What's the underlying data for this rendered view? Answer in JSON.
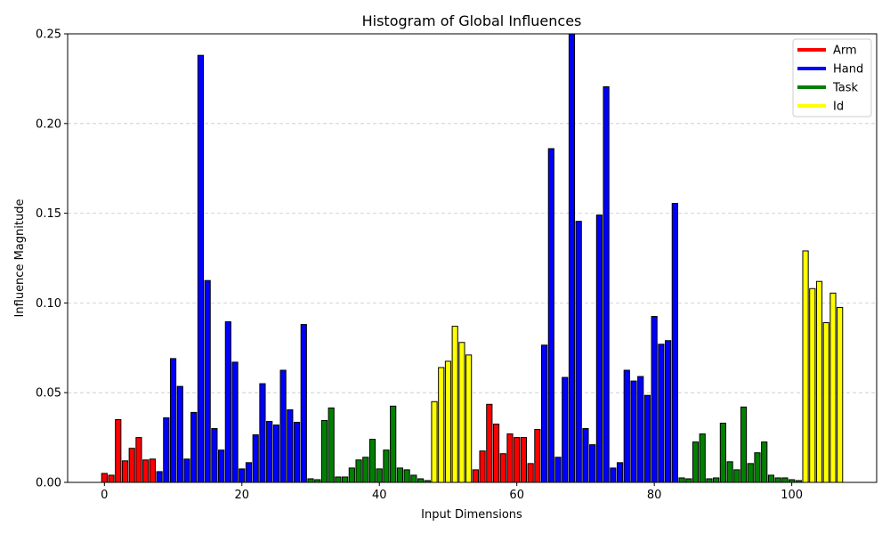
{
  "chart_data": {
    "type": "bar",
    "title": "Histogram of Global Influences",
    "xlabel": "Input Dimensions",
    "ylabel": "Influence Magnitude",
    "xlim": [
      -5.35,
      112.35
    ],
    "ylim": [
      0,
      0.25
    ],
    "x_ticks": [
      0,
      20,
      40,
      60,
      80,
      100
    ],
    "y_ticks": [
      0.0,
      0.05,
      0.1,
      0.15,
      0.2,
      0.25
    ],
    "y_tick_labels": [
      "0.00",
      "0.05",
      "0.10",
      "0.15",
      "0.20",
      "0.25"
    ],
    "grid": "y-dashed",
    "legend_position": "top-right",
    "legend": [
      {
        "name": "Arm",
        "color": "#ff0000"
      },
      {
        "name": "Hand",
        "color": "#0000ff"
      },
      {
        "name": "Task",
        "color": "#008000"
      },
      {
        "name": "Id",
        "color": "#ffff00"
      }
    ],
    "series": [
      {
        "name": "Arm",
        "color": "#ff0000",
        "x": [
          0,
          1,
          2,
          3,
          4,
          5,
          6,
          7
        ],
        "values": [
          0.005,
          0.004,
          0.035,
          0.012,
          0.019,
          0.025,
          0.0125,
          0.013
        ]
      },
      {
        "name": "Hand",
        "color": "#0000ff",
        "x": [
          8,
          9,
          10,
          11,
          12,
          13,
          14,
          15,
          16,
          17,
          18,
          19,
          20,
          21,
          22,
          23,
          24,
          25,
          26,
          27,
          28,
          29
        ],
        "values": [
          0.006,
          0.036,
          0.069,
          0.0535,
          0.013,
          0.039,
          0.238,
          0.1125,
          0.03,
          0.018,
          0.0895,
          0.067,
          0.0075,
          0.011,
          0.0265,
          0.055,
          0.034,
          0.032,
          0.0625,
          0.0405,
          0.0335,
          0.088
        ]
      },
      {
        "name": "Task",
        "color": "#008000",
        "x": [
          30,
          31,
          32,
          33,
          34,
          35,
          36,
          37,
          38,
          39,
          40,
          41,
          42,
          43,
          44,
          45,
          46,
          47
        ],
        "values": [
          0.002,
          0.0015,
          0.0345,
          0.0415,
          0.003,
          0.003,
          0.008,
          0.0125,
          0.014,
          0.024,
          0.0075,
          0.018,
          0.0425,
          0.008,
          0.007,
          0.004,
          0.002,
          0.001
        ]
      },
      {
        "name": "Id",
        "color": "#ffff00",
        "x": [
          48,
          49,
          50,
          51,
          52,
          53
        ],
        "values": [
          0.045,
          0.064,
          0.0675,
          0.087,
          0.078,
          0.071
        ]
      },
      {
        "name": "Arm",
        "color": "#ff0000",
        "x": [
          54,
          55,
          56,
          57,
          58,
          59,
          60,
          61,
          62,
          63
        ],
        "values": [
          0.007,
          0.0175,
          0.0435,
          0.0325,
          0.016,
          0.027,
          0.025,
          0.025,
          0.0105,
          0.0295
        ]
      },
      {
        "name": "Hand",
        "color": "#0000ff",
        "x": [
          64,
          65,
          66,
          67,
          68,
          69,
          70,
          71,
          72,
          73,
          74,
          75,
          76,
          77,
          78,
          79,
          80,
          81,
          82,
          83
        ],
        "values": [
          0.0765,
          0.186,
          0.014,
          0.0585,
          0.251,
          0.1455,
          0.03,
          0.021,
          0.149,
          0.2205,
          0.008,
          0.011,
          0.0625,
          0.0565,
          0.059,
          0.0485,
          0.0925,
          0.077,
          0.079,
          0.1555
        ]
      },
      {
        "name": "Task",
        "color": "#008000",
        "x": [
          84,
          85,
          86,
          87,
          88,
          89,
          90,
          91,
          92,
          93,
          94,
          95,
          96,
          97,
          98,
          99,
          100,
          101
        ],
        "values": [
          0.0025,
          0.002,
          0.0225,
          0.027,
          0.002,
          0.0025,
          0.033,
          0.0115,
          0.007,
          0.042,
          0.0105,
          0.0165,
          0.0225,
          0.004,
          0.0025,
          0.0025,
          0.0015,
          0.001
        ]
      },
      {
        "name": "Id",
        "color": "#ffff00",
        "x": [
          102,
          103,
          104,
          105,
          106,
          107
        ],
        "values": [
          0.129,
          0.108,
          0.112,
          0.089,
          0.1055,
          0.0975
        ]
      }
    ]
  }
}
